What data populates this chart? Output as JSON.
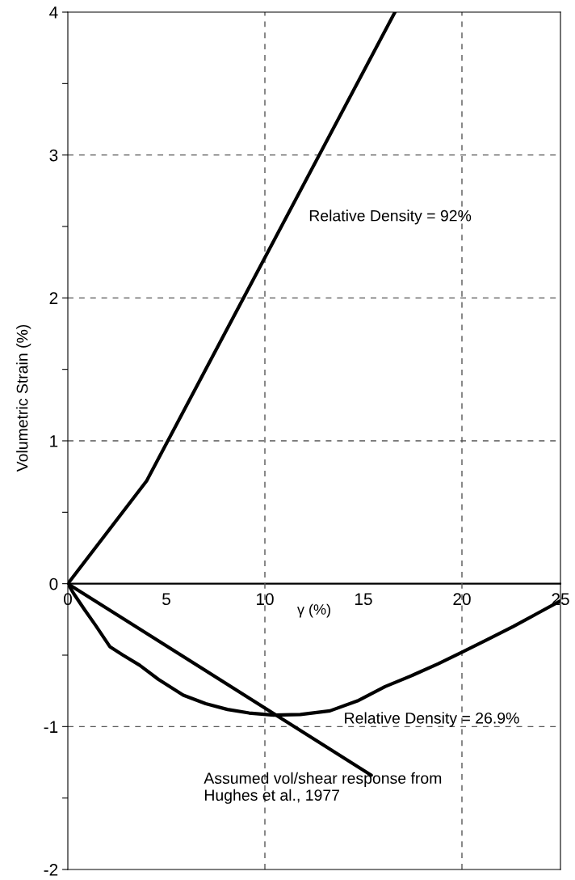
{
  "chart_data": {
    "type": "line",
    "xlabel": "γ (%)",
    "ylabel": "Volumetric Strain (%)",
    "xlim": [
      0,
      25
    ],
    "xticks": [
      0,
      5,
      10,
      15,
      20,
      25
    ],
    "ylim": [
      -2,
      4
    ],
    "yticks": [
      -2,
      {
        "value": -1.5,
        "label": null
      },
      -1,
      {
        "value": -0.5,
        "label": null
      },
      0,
      {
        "value": 0.5,
        "label": null
      },
      1,
      {
        "value": 1.5,
        "label": null
      },
      2,
      {
        "value": 2.5,
        "label": null
      },
      3,
      {
        "value": 3.5,
        "label": null
      },
      4
    ],
    "grid": true,
    "line_style": "solid",
    "marker": "none",
    "series": [
      {
        "name": "Relative Density = 92%",
        "color": "#000000",
        "x": [
          0,
          4,
          16.6
        ],
        "values": [
          0,
          0.72,
          4
        ]
      },
      {
        "name": "Assumed vol/shear response from\nHughes et al., 1977",
        "color": "#000000",
        "x": [
          0,
          15.4
        ],
        "values": [
          0,
          -1.34
        ]
      },
      {
        "name": "Relative Density = 26.9%",
        "color": "#000000",
        "x": [
          0,
          0.3,
          0.84,
          1.4,
          2.13,
          2.8,
          3.64,
          4.6,
          5.86,
          7,
          8.1,
          9.2,
          10.45,
          11.8,
          13.3,
          14.7,
          16.1,
          17.5,
          18.8,
          20.0,
          21.3,
          22.6,
          23.8,
          25
        ],
        "values": [
          0,
          -0.07,
          -0.18,
          -0.29,
          -0.44,
          -0.5,
          -0.57,
          -0.67,
          -0.78,
          -0.84,
          -0.88,
          -0.905,
          -0.92,
          -0.915,
          -0.89,
          -0.82,
          -0.72,
          -0.64,
          -0.56,
          -0.48,
          -0.39,
          -0.3,
          -0.21,
          -0.12
        ]
      }
    ]
  }
}
